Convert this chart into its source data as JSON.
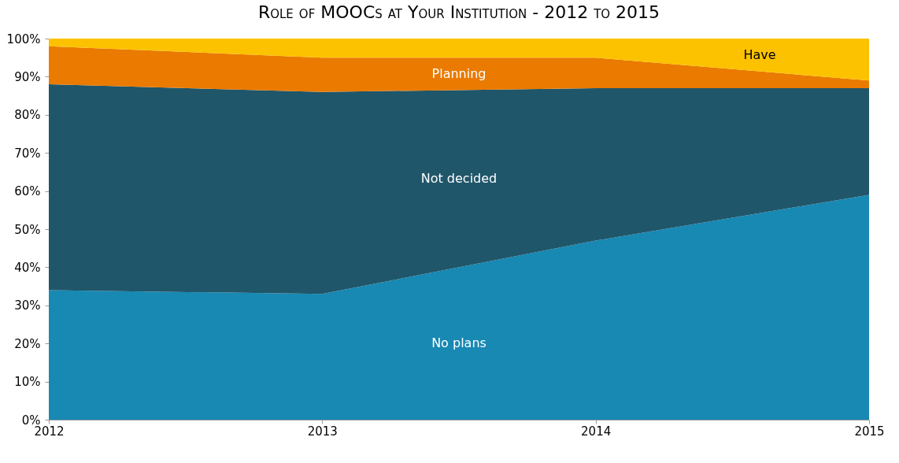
{
  "chart_data": {
    "type": "area",
    "stacked": true,
    "title": "Role of MOOCs at Your Institution - 2012 to 2015",
    "x": [
      2012,
      2013,
      2014,
      2015
    ],
    "xlim": [
      2012,
      2015
    ],
    "xticks": [
      2012,
      2013,
      2014,
      2015
    ],
    "ylim": [
      0,
      100
    ],
    "yticks": [
      {
        "value": 0,
        "label": "0%"
      },
      {
        "value": 10,
        "label": "10%"
      },
      {
        "value": 20,
        "label": "20%"
      },
      {
        "value": 30,
        "label": "30%"
      },
      {
        "value": 40,
        "label": "40%"
      },
      {
        "value": 50,
        "label": "50%"
      },
      {
        "value": 60,
        "label": "60%"
      },
      {
        "value": 70,
        "label": "70%"
      },
      {
        "value": 80,
        "label": "80%"
      },
      {
        "value": 90,
        "label": "90%"
      },
      {
        "value": 100,
        "label": "100%"
      }
    ],
    "grid": false,
    "legend": false,
    "series": [
      {
        "name": "No plans",
        "color": "#1789b3",
        "values": [
          34,
          33,
          47,
          59
        ]
      },
      {
        "name": "Not decided",
        "color": "#1f566a",
        "values": [
          54,
          53,
          40,
          28
        ]
      },
      {
        "name": "Planning",
        "color": "#ea7a00",
        "values": [
          10,
          9,
          8,
          2
        ]
      },
      {
        "name": "Have",
        "color": "#fcc200",
        "values": [
          2,
          5,
          5,
          11
        ]
      }
    ]
  }
}
